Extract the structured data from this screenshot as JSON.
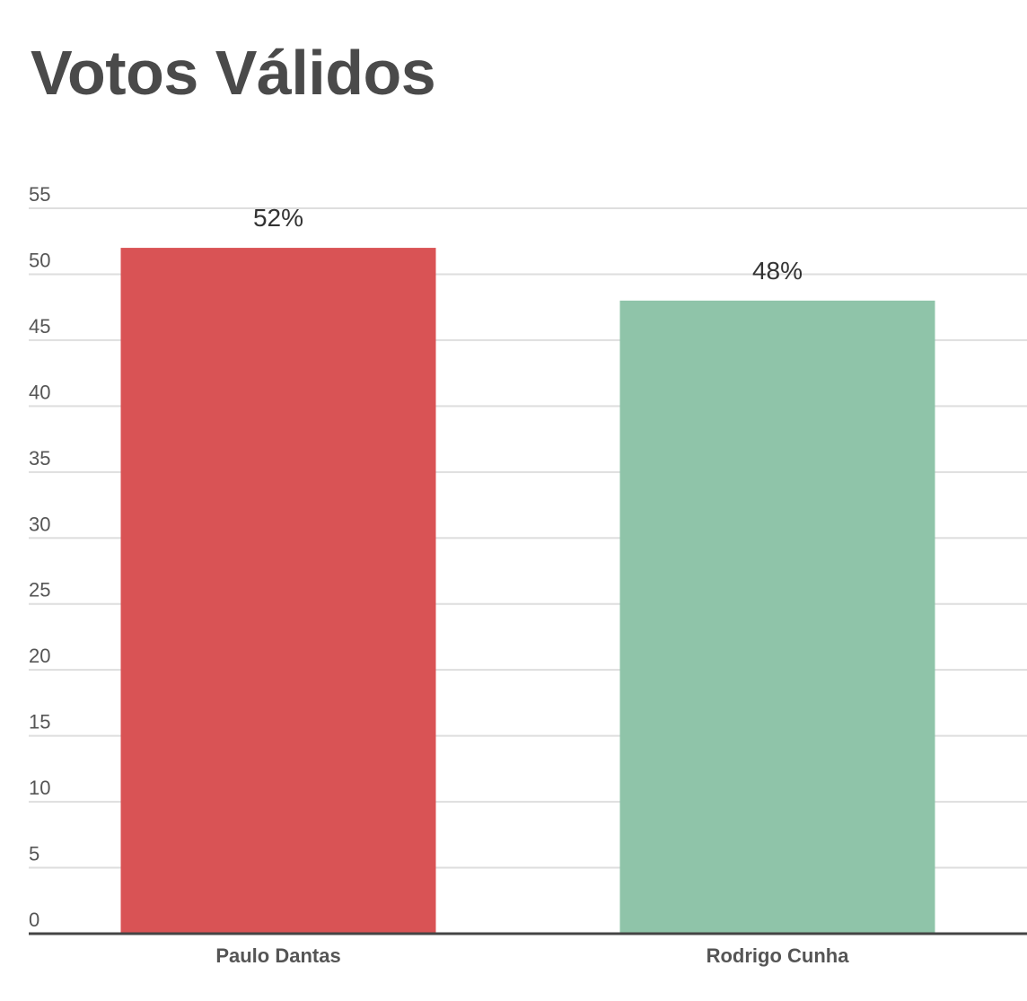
{
  "chart_data": {
    "type": "bar",
    "title": "Votos Válidos",
    "xlabel": "",
    "ylabel": "",
    "categories": [
      "Paulo Dantas",
      "Rodrigo Cunha"
    ],
    "values": [
      52,
      48
    ],
    "data_labels": [
      "52%",
      "48%"
    ],
    "colors": [
      "#d95355",
      "#8fc4a9"
    ],
    "ylim": [
      0,
      55
    ],
    "y_ticks": [
      0,
      5,
      10,
      15,
      20,
      25,
      30,
      35,
      40,
      45,
      50,
      55
    ],
    "grid": true,
    "legend": "none"
  },
  "style": {
    "gridline_color": "#dedede",
    "baseline_color": "#444444"
  }
}
